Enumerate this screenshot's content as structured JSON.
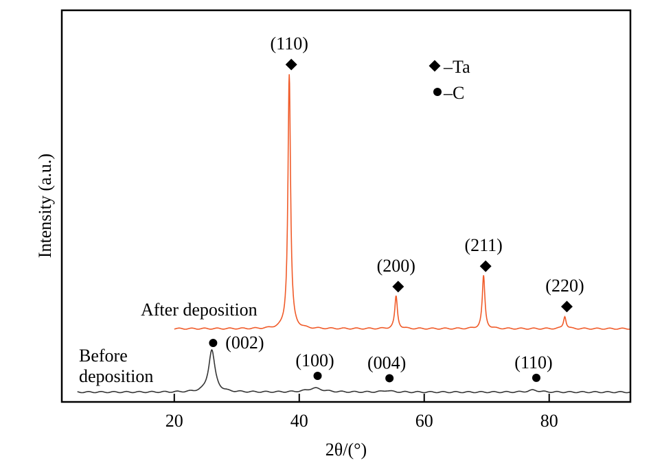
{
  "chart_data": {
    "type": "line",
    "title": "",
    "xlabel": "2θ/(°)",
    "ylabel": "Intensity (a.u.)",
    "xlim": [
      2,
      93
    ],
    "ylim": [
      0,
      100
    ],
    "xticks": [
      "20",
      "40",
      "60",
      "80"
    ],
    "xtick_values": [
      20,
      40,
      60,
      80
    ],
    "grid": false,
    "legend": {
      "placement": "top-center",
      "entries": [
        {
          "marker": "diamond",
          "label": "–Ta"
        },
        {
          "marker": "circle",
          "label": "–C"
        }
      ]
    },
    "series": [
      {
        "name": "After deposition",
        "color": "#f05a28",
        "x_range": [
          20,
          93
        ],
        "baseline": 18.7,
        "peaks": [
          {
            "x": 38.4,
            "height": 65,
            "width": 0.25,
            "label": "(110)",
            "phase": "Ta"
          },
          {
            "x": 55.5,
            "height": 8.3,
            "width": 0.25,
            "label": "(200)",
            "phase": "Ta"
          },
          {
            "x": 69.5,
            "height": 13.5,
            "width": 0.25,
            "label": "(211)",
            "phase": "Ta"
          },
          {
            "x": 82.5,
            "height": 3.2,
            "width": 0.25,
            "label": "(220)",
            "phase": "Ta"
          }
        ]
      },
      {
        "name": "Before deposition",
        "color": "#333333",
        "x_range": [
          4.5,
          93
        ],
        "baseline": 2.5,
        "peaks": [
          {
            "x": 26.0,
            "height": 10.8,
            "width": 0.6,
            "label": "(002)",
            "phase": "C"
          },
          {
            "x": 42.5,
            "height": 1.0,
            "width": 1.5,
            "label": "(100)",
            "phase": "C"
          },
          {
            "x": 54.0,
            "height": 0.4,
            "width": 0.8,
            "label": "(004)",
            "phase": "C"
          },
          {
            "x": 77.5,
            "height": 0.5,
            "width": 1.0,
            "label": "(110)",
            "phase": "C"
          }
        ]
      }
    ],
    "annotations": [
      "After deposition",
      "Before",
      "deposition"
    ]
  }
}
